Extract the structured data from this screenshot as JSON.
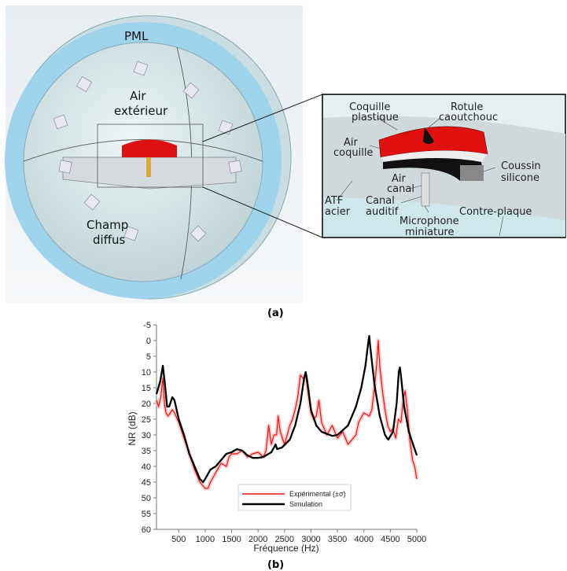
{
  "panel_a": {
    "caption": "(a)",
    "labels": {
      "pml": "PML",
      "air_exterieur": [
        "Air",
        "extérieur"
      ],
      "champ_diffus": [
        "Champ",
        "diffus"
      ]
    },
    "inset_labels": {
      "coquille_plastique": [
        "Coquille",
        "plastique"
      ],
      "rotule_caoutchouc": [
        "Rotule",
        "caoutchouc"
      ],
      "air_coquille": [
        "Air",
        "coquille"
      ],
      "coussin_silicone": [
        "Coussin",
        "silicone"
      ],
      "air_canal": [
        "Air",
        "canal"
      ],
      "canal_auditif": [
        "Canal",
        "auditif"
      ],
      "atf_acier": [
        "ATF",
        "acier"
      ],
      "contre_plaque": "Contre-plaque",
      "microphone_miniature": [
        "Microphone",
        "miniature"
      ]
    },
    "colors": {
      "pml": "#9fd3ec",
      "shell": "#dd1111",
      "air": "#d8e8ea"
    }
  },
  "chart_data": {
    "type": "line",
    "caption": "(b)",
    "xlabel": "Fréquence (Hz)",
    "ylabel": "NR (dB)",
    "xlim": [
      80,
      5000
    ],
    "ylim": [
      -5,
      60
    ],
    "y_inverted": true,
    "grid": false,
    "legend_placement": "bottom-center",
    "xticks": [
      500,
      1000,
      1500,
      2000,
      2500,
      3000,
      3500,
      4000,
      4500,
      5000
    ],
    "yticks": [
      -5,
      0,
      5,
      10,
      15,
      20,
      25,
      30,
      35,
      40,
      45,
      50,
      55,
      60
    ],
    "series": [
      {
        "name": "Expérimental (±σ)",
        "color": "#e8140f",
        "band_color": "#f6b8b8",
        "points": [
          [
            80,
            19
          ],
          [
            120,
            21
          ],
          [
            160,
            18
          ],
          [
            200,
            12
          ],
          [
            230,
            20
          ],
          [
            260,
            23
          ],
          [
            300,
            24
          ],
          [
            340,
            23
          ],
          [
            380,
            22
          ],
          [
            420,
            23
          ],
          [
            500,
            26
          ],
          [
            600,
            31
          ],
          [
            700,
            36
          ],
          [
            800,
            41
          ],
          [
            900,
            45
          ],
          [
            1000,
            47
          ],
          [
            1050,
            47
          ],
          [
            1100,
            45
          ],
          [
            1200,
            42
          ],
          [
            1300,
            39
          ],
          [
            1400,
            40
          ],
          [
            1450,
            37
          ],
          [
            1500,
            36
          ],
          [
            1600,
            36
          ],
          [
            1700,
            35
          ],
          [
            1800,
            37
          ],
          [
            1900,
            36
          ],
          [
            2000,
            35.5
          ],
          [
            2100,
            37
          ],
          [
            2150,
            35
          ],
          [
            2200,
            27
          ],
          [
            2250,
            33
          ],
          [
            2300,
            30
          ],
          [
            2350,
            30
          ],
          [
            2380,
            24
          ],
          [
            2420,
            29
          ],
          [
            2500,
            33
          ],
          [
            2550,
            30
          ],
          [
            2600,
            27
          ],
          [
            2650,
            25
          ],
          [
            2700,
            22
          ],
          [
            2750,
            18
          ],
          [
            2800,
            11
          ],
          [
            2850,
            12
          ],
          [
            2900,
            11
          ],
          [
            2950,
            17
          ],
          [
            3000,
            23
          ],
          [
            3050,
            25
          ],
          [
            3100,
            24
          ],
          [
            3150,
            19
          ],
          [
            3200,
            26
          ],
          [
            3300,
            30
          ],
          [
            3400,
            27
          ],
          [
            3500,
            31
          ],
          [
            3600,
            29
          ],
          [
            3700,
            33
          ],
          [
            3800,
            31
          ],
          [
            3850,
            30
          ],
          [
            3900,
            26
          ],
          [
            4000,
            23
          ],
          [
            4100,
            24
          ],
          [
            4150,
            22
          ],
          [
            4200,
            15
          ],
          [
            4250,
            6
          ],
          [
            4270,
            0
          ],
          [
            4300,
            8
          ],
          [
            4350,
            16
          ],
          [
            4400,
            22
          ],
          [
            4450,
            27
          ],
          [
            4500,
            29
          ],
          [
            4550,
            28
          ],
          [
            4600,
            31
          ],
          [
            4650,
            25
          ],
          [
            4700,
            26
          ],
          [
            4750,
            18
          ],
          [
            4780,
            16
          ],
          [
            4820,
            22
          ],
          [
            4870,
            32
          ],
          [
            4920,
            38
          ],
          [
            4960,
            40
          ],
          [
            5000,
            44
          ]
        ]
      },
      {
        "name": "Simulation",
        "color": "#000000",
        "points": [
          [
            80,
            17
          ],
          [
            150,
            13
          ],
          [
            200,
            8
          ],
          [
            240,
            14
          ],
          [
            280,
            21
          ],
          [
            320,
            21
          ],
          [
            380,
            18
          ],
          [
            420,
            19
          ],
          [
            500,
            25
          ],
          [
            600,
            30
          ],
          [
            700,
            36
          ],
          [
            800,
            40
          ],
          [
            900,
            44
          ],
          [
            960,
            45
          ],
          [
            1000,
            44
          ],
          [
            1100,
            41
          ],
          [
            1200,
            40
          ],
          [
            1300,
            38
          ],
          [
            1400,
            36
          ],
          [
            1500,
            35.5
          ],
          [
            1600,
            34.5
          ],
          [
            1700,
            35
          ],
          [
            1800,
            36.5
          ],
          [
            1900,
            37.3
          ],
          [
            2000,
            37.3
          ],
          [
            2100,
            37
          ],
          [
            2200,
            36
          ],
          [
            2250,
            35.5
          ],
          [
            2300,
            34
          ],
          [
            2330,
            33
          ],
          [
            2360,
            34.5
          ],
          [
            2450,
            34
          ],
          [
            2600,
            31.5
          ],
          [
            2700,
            27
          ],
          [
            2800,
            20
          ],
          [
            2870,
            12
          ],
          [
            2900,
            10
          ],
          [
            2930,
            13
          ],
          [
            3000,
            22
          ],
          [
            3100,
            27
          ],
          [
            3200,
            29
          ],
          [
            3400,
            30.3
          ],
          [
            3500,
            30
          ],
          [
            3700,
            27
          ],
          [
            3850,
            21
          ],
          [
            3950,
            15
          ],
          [
            4030,
            8
          ],
          [
            4080,
            1
          ],
          [
            4100,
            -1.5
          ],
          [
            4120,
            2
          ],
          [
            4200,
            14
          ],
          [
            4300,
            24
          ],
          [
            4400,
            30
          ],
          [
            4460,
            31.5
          ],
          [
            4550,
            29
          ],
          [
            4620,
            20
          ],
          [
            4660,
            10
          ],
          [
            4680,
            8.5
          ],
          [
            4700,
            11
          ],
          [
            4760,
            21
          ],
          [
            4850,
            29
          ],
          [
            4950,
            34
          ],
          [
            5000,
            36.5
          ]
        ]
      }
    ]
  }
}
